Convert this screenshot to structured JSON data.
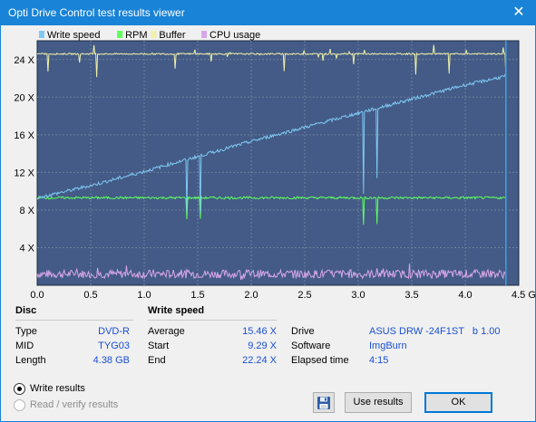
{
  "window": {
    "title": "Opti Drive Control test results viewer",
    "close_glyph": "✕"
  },
  "chart_data": {
    "type": "line",
    "legend": [
      {
        "name": "Write speed",
        "color": "#7ec8f4"
      },
      {
        "name": "RPM",
        "color": "#5dff5d"
      },
      {
        "name": "Buffer",
        "color": "#f0f0a8"
      },
      {
        "name": "CPU usage",
        "color": "#d8a6e8"
      }
    ],
    "legend_placement": "top-left",
    "background": "#435b86",
    "grid": true,
    "xlim": [
      0,
      4.5
    ],
    "ylim": [
      0,
      26
    ],
    "x_ticks": [
      "0.0",
      "0.5",
      "1.0",
      "1.5",
      "2.0",
      "2.5",
      "3.0",
      "3.5",
      "4.0",
      "4.5 GB"
    ],
    "y_ticks": [
      "4 X",
      "8 X",
      "12 X",
      "16 X",
      "20 X",
      "24 X"
    ],
    "x_end_marker": 4.38,
    "series": [
      {
        "name": "Write speed",
        "x": [
          0.0,
          0.5,
          1.0,
          1.5,
          2.0,
          2.5,
          3.0,
          3.5,
          4.0,
          4.38
        ],
        "values": [
          9.29,
          10.6,
          12.1,
          13.7,
          15.3,
          16.8,
          18.3,
          19.8,
          21.3,
          22.24
        ]
      },
      {
        "name": "RPM",
        "x": [
          0.0,
          4.38
        ],
        "values": [
          9.3,
          9.3
        ]
      },
      {
        "name": "Buffer",
        "x": [
          0.0,
          4.38
        ],
        "values": [
          24.6,
          24.6
        ]
      },
      {
        "name": "CPU usage",
        "x": [
          0.0,
          4.38
        ],
        "values": [
          1.2,
          1.2
        ]
      }
    ]
  },
  "disc": {
    "heading": "Disc",
    "rows": [
      {
        "label": "Type",
        "value": "DVD-R"
      },
      {
        "label": "MID",
        "value": "TYG03"
      },
      {
        "label": "Length",
        "value": "4.38 GB"
      }
    ]
  },
  "write_speed": {
    "heading": "Write speed",
    "rows": [
      {
        "label": "Average",
        "value": "15.46 X"
      },
      {
        "label": "Start",
        "value": "9.29 X"
      },
      {
        "label": "End",
        "value": "22.24 X"
      }
    ]
  },
  "info": {
    "rows": [
      {
        "label": "Drive",
        "value": "ASUS DRW -24F1ST   b 1.00"
      },
      {
        "label": "Software",
        "value": "ImgBurn"
      },
      {
        "label": "Elapsed time",
        "value": "4:15"
      }
    ]
  },
  "results": {
    "write_label": "Write results",
    "read_label": "Read / verify results",
    "selected": "write"
  },
  "buttons": {
    "save_icon": "floppy-disk-icon",
    "use_results": "Use results",
    "ok": "OK"
  }
}
